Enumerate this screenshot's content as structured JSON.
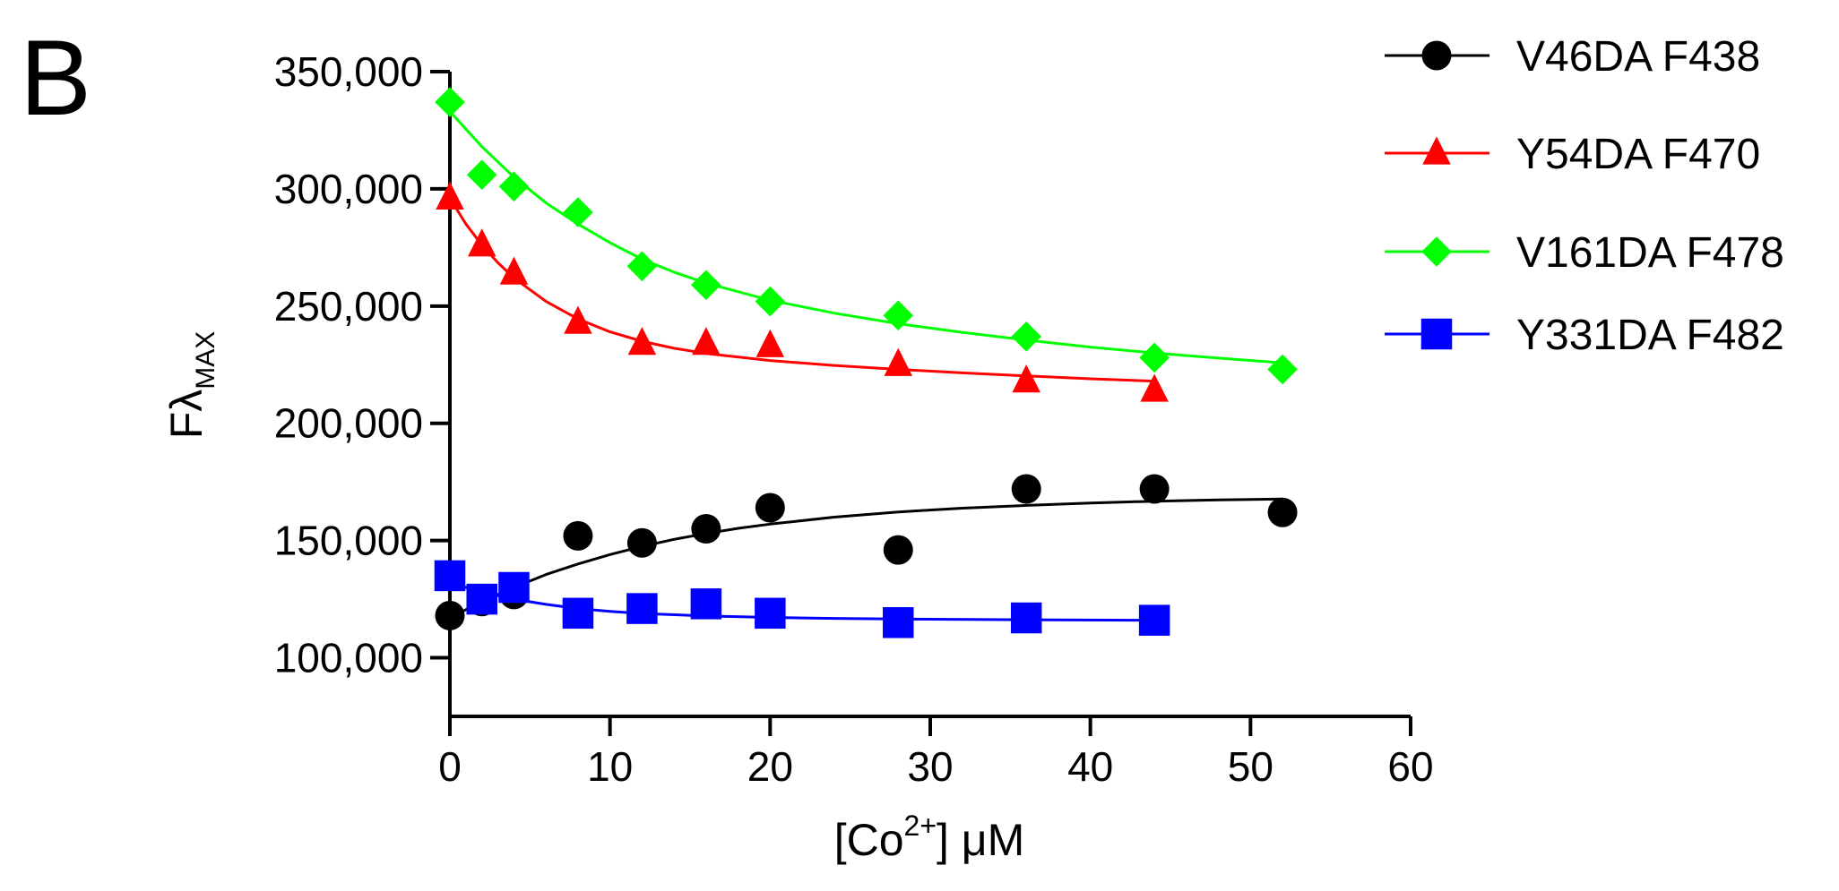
{
  "panel_label": "B",
  "chart_data": {
    "type": "scatter",
    "title": "",
    "xlabel": {
      "prefix": "[Co",
      "superscript": "2+",
      "suffix": "] μM"
    },
    "ylabel": {
      "main": "Fλ",
      "subscript": "MAX"
    },
    "xlim": [
      0,
      60
    ],
    "ylim": [
      75000,
      350000
    ],
    "x_ticks": [
      0,
      10,
      20,
      30,
      40,
      50,
      60
    ],
    "x_tick_labels": [
      "0",
      "10",
      "20",
      "30",
      "40",
      "50",
      "60"
    ],
    "y_ticks": [
      100000,
      150000,
      200000,
      250000,
      300000,
      350000
    ],
    "y_tick_labels": [
      "100,000",
      "150,000",
      "200,000",
      "250,000",
      "300,000",
      "350,000"
    ],
    "legend_position": "top-right",
    "series": [
      {
        "name": "V46DA F438",
        "color": "#000000",
        "marker": "circle",
        "x": [
          0,
          2,
          4,
          8,
          12,
          16,
          20,
          28,
          36,
          44,
          52
        ],
        "y": [
          118000,
          124000,
          127000,
          152000,
          149000,
          155000,
          164000,
          146000,
          172000,
          172000,
          162000
        ],
        "fit": [
          [
            0,
            117000
          ],
          [
            2,
            124000
          ],
          [
            4,
            130000
          ],
          [
            6,
            135500
          ],
          [
            8,
            140000
          ],
          [
            10,
            144000
          ],
          [
            12,
            147500
          ],
          [
            14,
            150500
          ],
          [
            16,
            153000
          ],
          [
            18,
            155200
          ],
          [
            20,
            157000
          ],
          [
            24,
            160000
          ],
          [
            28,
            162200
          ],
          [
            32,
            163800
          ],
          [
            36,
            165000
          ],
          [
            40,
            166000
          ],
          [
            44,
            166800
          ],
          [
            48,
            167300
          ],
          [
            52,
            167700
          ]
        ]
      },
      {
        "name": "Y54DA F470",
        "color": "#ff0000",
        "marker": "triangle",
        "x": [
          0,
          2,
          4,
          8,
          12,
          16,
          20,
          28,
          36,
          44
        ],
        "y": [
          296000,
          276000,
          264000,
          243000,
          234000,
          234000,
          233000,
          225000,
          218000,
          214000
        ],
        "fit": [
          [
            0,
            296000
          ],
          [
            1,
            285000
          ],
          [
            2,
            276000
          ],
          [
            3,
            268500
          ],
          [
            4,
            262000
          ],
          [
            6,
            252000
          ],
          [
            8,
            244500
          ],
          [
            10,
            239000
          ],
          [
            12,
            235000
          ],
          [
            14,
            232000
          ],
          [
            16,
            229800
          ],
          [
            20,
            226800
          ],
          [
            24,
            224700
          ],
          [
            28,
            223000
          ],
          [
            32,
            221500
          ],
          [
            36,
            220200
          ],
          [
            40,
            219000
          ],
          [
            44,
            218000
          ]
        ]
      },
      {
        "name": "V161DA F478",
        "color": "#00ff00",
        "marker": "diamond",
        "x": [
          0,
          2,
          4,
          8,
          12,
          16,
          20,
          28,
          36,
          44,
          52
        ],
        "y": [
          337000,
          306000,
          301000,
          290000,
          267000,
          259000,
          252000,
          246000,
          237000,
          228000,
          223000
        ],
        "fit": [
          [
            0,
            333000
          ],
          [
            2,
            318000
          ],
          [
            4,
            305000
          ],
          [
            6,
            294000
          ],
          [
            8,
            285000
          ],
          [
            10,
            277000
          ],
          [
            12,
            270000
          ],
          [
            14,
            264500
          ],
          [
            16,
            259800
          ],
          [
            20,
            252500
          ],
          [
            24,
            247000
          ],
          [
            28,
            242500
          ],
          [
            32,
            238800
          ],
          [
            36,
            235500
          ],
          [
            40,
            232500
          ],
          [
            44,
            230000
          ],
          [
            48,
            227800
          ],
          [
            52,
            225800
          ]
        ]
      },
      {
        "name": "Y331DA F482",
        "color": "#0000ff",
        "marker": "square",
        "x": [
          0,
          2,
          4,
          8,
          12,
          16,
          20,
          28,
          36,
          44
        ],
        "y": [
          135000,
          125000,
          130000,
          119000,
          121000,
          123000,
          119000,
          115000,
          117000,
          116000
        ],
        "fit": [
          [
            0,
            132000
          ],
          [
            2,
            128000
          ],
          [
            4,
            125000
          ],
          [
            6,
            122800
          ],
          [
            8,
            121000
          ],
          [
            10,
            119800
          ],
          [
            12,
            118900
          ],
          [
            16,
            117800
          ],
          [
            20,
            117200
          ],
          [
            24,
            116800
          ],
          [
            28,
            116500
          ],
          [
            36,
            116200
          ],
          [
            44,
            116000
          ]
        ]
      }
    ]
  }
}
